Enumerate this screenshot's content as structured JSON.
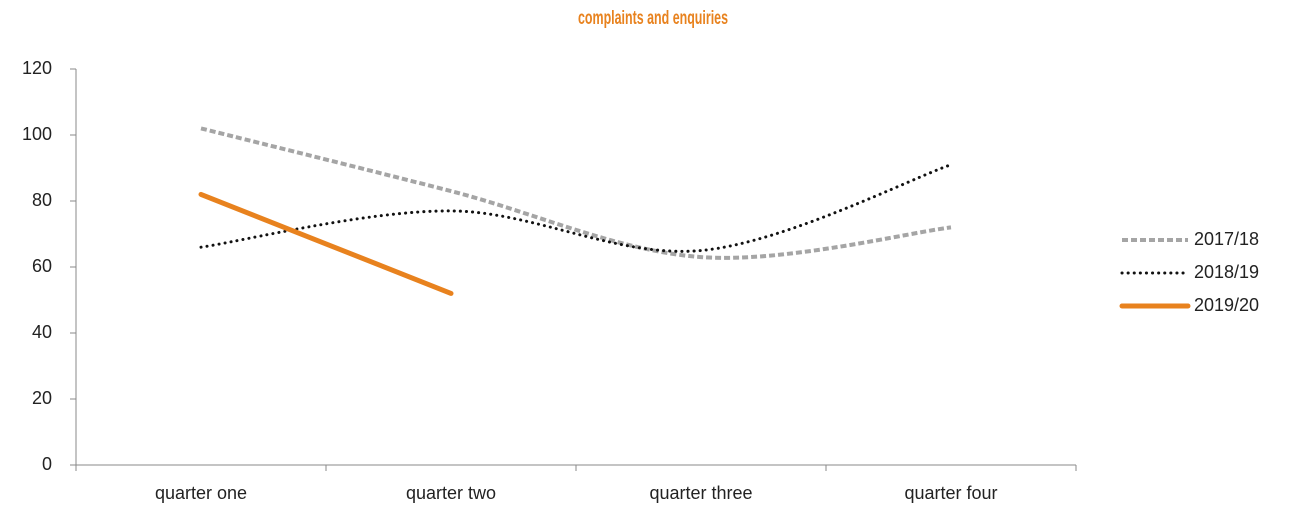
{
  "chart_data": {
    "type": "line",
    "title": "complaints and enquiries",
    "categories": [
      "quarter one",
      "quarter two",
      "quarter three",
      "quarter four"
    ],
    "series": [
      {
        "name": "2017/18",
        "color": "#a5a5a5",
        "style": "dashed",
        "values": [
          102,
          83,
          63,
          72
        ]
      },
      {
        "name": "2018/19",
        "color": "#111111",
        "style": "dotted",
        "values": [
          66,
          77,
          65,
          91
        ]
      },
      {
        "name": "2019/20",
        "color": "#e8821e",
        "style": "solid",
        "values": [
          82,
          52,
          null,
          null
        ]
      }
    ],
    "ylim": [
      0,
      120
    ],
    "yticks": [
      0,
      20,
      40,
      60,
      80,
      100,
      120
    ],
    "smooth": true,
    "legend": "right"
  }
}
